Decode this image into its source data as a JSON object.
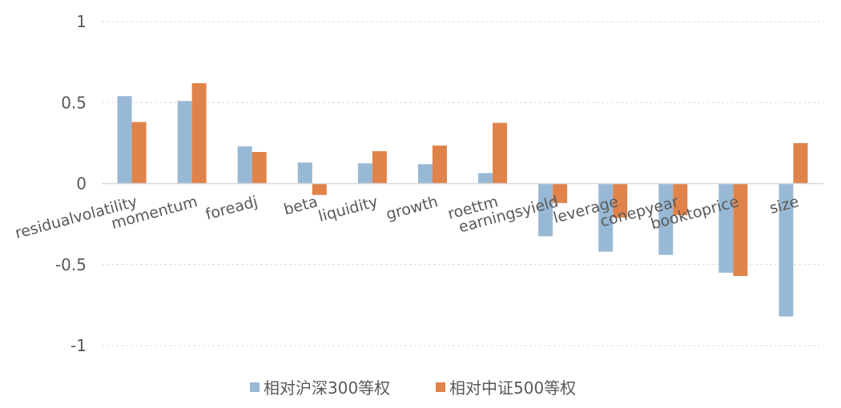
{
  "chart_data": {
    "type": "bar",
    "categories": [
      "residualvolatility",
      "momentum",
      "foreadj",
      "beta",
      "liquidity",
      "growth",
      "roettm",
      "earningsyield",
      "leverage",
      "conepyear",
      "booktoprice",
      "size"
    ],
    "series": [
      {
        "name": "相对沪深300等权",
        "color": "#98B9D5",
        "values": [
          0.54,
          0.51,
          0.23,
          0.13,
          0.125,
          0.12,
          0.065,
          -0.325,
          -0.42,
          -0.44,
          -0.55,
          -0.82
        ]
      },
      {
        "name": "相对中证500等权",
        "color": "#E0834A",
        "values": [
          0.38,
          0.62,
          0.195,
          -0.07,
          0.2,
          0.235,
          0.375,
          -0.12,
          -0.21,
          -0.195,
          -0.57,
          0.25
        ]
      }
    ],
    "ylim": [
      -1,
      1
    ],
    "yticks": [
      1,
      0.5,
      0,
      -0.5,
      -1
    ],
    "ytick_labels": [
      "1",
      "0.5",
      "0",
      "-0.5",
      "-1"
    ],
    "grid": true,
    "legend_position": "bottom",
    "title": "",
    "xlabel": "",
    "ylabel": ""
  }
}
